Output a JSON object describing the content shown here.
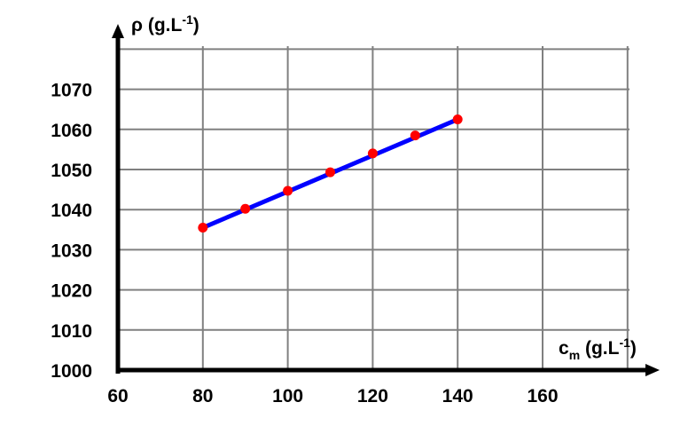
{
  "chart_data": {
    "type": "line",
    "title": "",
    "xlabel": "c",
    "xlabel_sub": "m",
    "xlabel_unit": " (g.L",
    "xlabel_sup": "-1",
    "xlabel_close": ")",
    "ylabel": "ρ (g.L",
    "ylabel_sup": "-1",
    "ylabel_close": ")",
    "xlim": [
      60,
      180
    ],
    "ylim": [
      1000,
      1080
    ],
    "xticks": [
      60,
      80,
      100,
      120,
      140,
      160
    ],
    "yticks": [
      1000,
      1010,
      1020,
      1030,
      1040,
      1050,
      1060,
      1070
    ],
    "grid": true,
    "series": [
      {
        "x": [
          80,
          90,
          100,
          110,
          120,
          130,
          140
        ],
        "y": [
          1035.5,
          1040.2,
          1044.7,
          1049.3,
          1054,
          1058.5,
          1062.5
        ],
        "marker_color": "#ff0000"
      }
    ],
    "fit_line": {
      "x": [
        80,
        140
      ],
      "y": [
        1035.5,
        1062.5
      ],
      "color": "#0000ff"
    },
    "axis_color": "#000000",
    "grid_color": "#808080"
  }
}
